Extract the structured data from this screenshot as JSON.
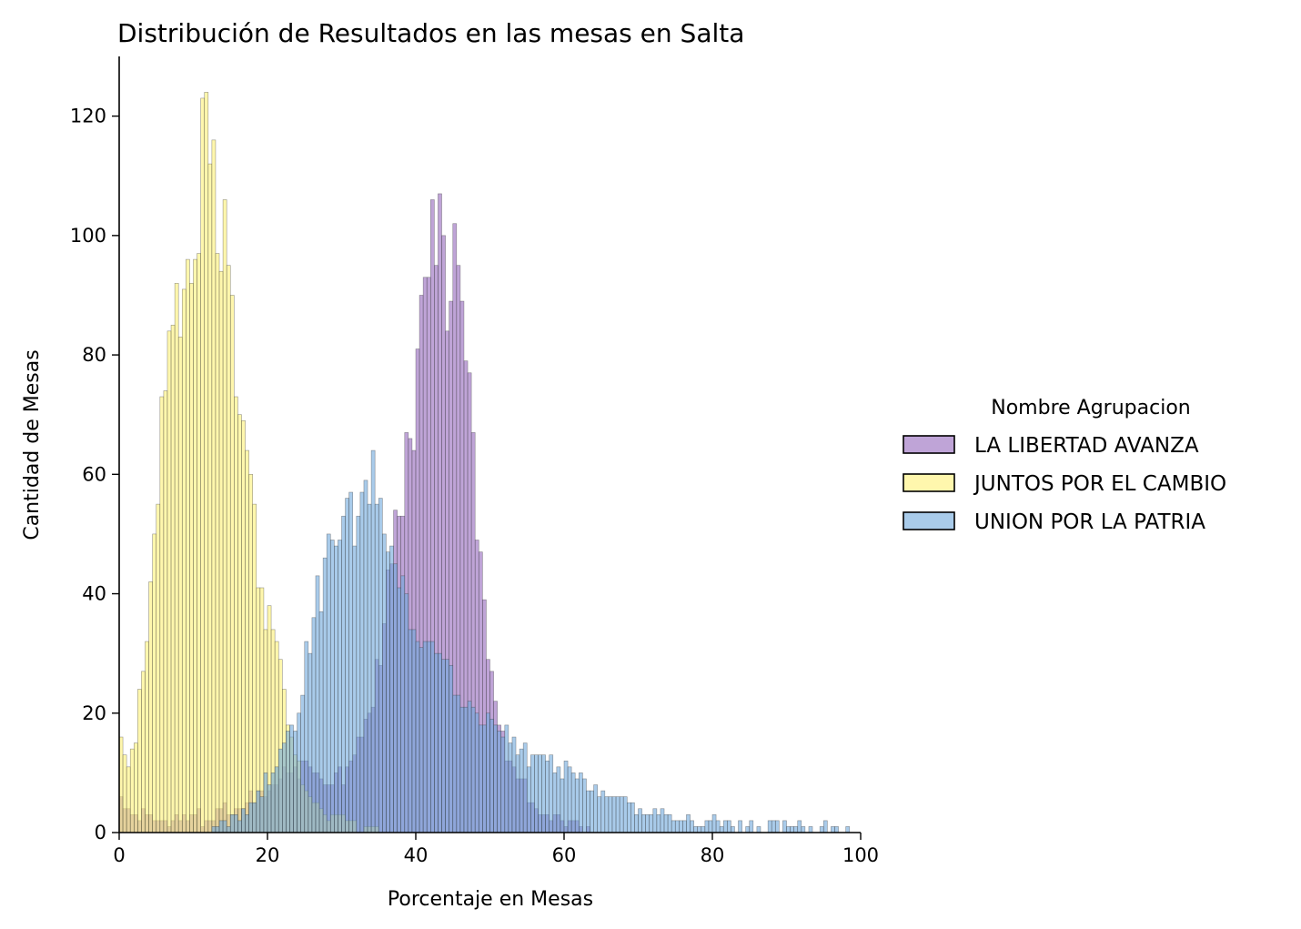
{
  "chart_data": {
    "type": "histogram",
    "title": "Distribución de Resultados en las mesas en Salta",
    "xlabel": "Porcentaje en Mesas",
    "ylabel": "Cantidad de Mesas",
    "xlim": [
      0,
      100
    ],
    "ylim": [
      0,
      130
    ],
    "xticks": [
      0,
      20,
      40,
      60,
      80,
      100
    ],
    "yticks": [
      0,
      20,
      40,
      60,
      80,
      100,
      120
    ],
    "bin_width": 0.5,
    "grid": false,
    "legend": {
      "title": "Nombre Agrupacion",
      "position": "right-center"
    },
    "series": [
      {
        "name": "LA LIBERTAD AVANZA",
        "color": "#9467bd",
        "profile": [
          [
            0,
            8
          ],
          [
            1,
            3
          ],
          [
            2,
            3
          ],
          [
            3,
            3
          ],
          [
            4,
            2
          ],
          [
            6,
            2
          ],
          [
            8,
            2
          ],
          [
            10,
            3
          ],
          [
            12,
            2
          ],
          [
            14,
            4
          ],
          [
            16,
            4
          ],
          [
            18,
            6
          ],
          [
            20,
            7
          ],
          [
            22,
            9
          ],
          [
            24,
            11
          ],
          [
            26,
            12
          ],
          [
            28,
            8
          ],
          [
            30,
            9
          ],
          [
            32,
            14
          ],
          [
            33,
            17
          ],
          [
            34,
            22
          ],
          [
            35,
            28
          ],
          [
            36,
            38
          ],
          [
            37,
            48
          ],
          [
            38,
            56
          ],
          [
            39,
            64
          ],
          [
            40,
            70
          ],
          [
            41,
            86
          ],
          [
            42,
            96
          ],
          [
            42.5,
            104
          ],
          [
            43,
            100
          ],
          [
            44,
            94
          ],
          [
            45,
            98
          ],
          [
            46,
            84
          ],
          [
            47,
            78
          ],
          [
            48,
            58
          ],
          [
            49,
            40
          ],
          [
            50,
            26
          ],
          [
            51,
            20
          ],
          [
            52,
            15
          ],
          [
            54,
            9
          ],
          [
            56,
            5
          ],
          [
            58,
            3
          ],
          [
            60,
            2
          ],
          [
            62,
            1
          ],
          [
            64,
            0
          ],
          [
            100,
            0
          ]
        ]
      },
      {
        "name": "JUNTOS POR EL CAMBIO",
        "color": "#fff176",
        "profile": [
          [
            0,
            19
          ],
          [
            1,
            10
          ],
          [
            2,
            15
          ],
          [
            3,
            25
          ],
          [
            4,
            38
          ],
          [
            5,
            50
          ],
          [
            6,
            72
          ],
          [
            7,
            78
          ],
          [
            8,
            89
          ],
          [
            9,
            98
          ],
          [
            10,
            100
          ],
          [
            11,
            112
          ],
          [
            12,
            124
          ],
          [
            13,
            107
          ],
          [
            14,
            101
          ],
          [
            15,
            86
          ],
          [
            16,
            76
          ],
          [
            17,
            60
          ],
          [
            18,
            55
          ],
          [
            19,
            40
          ],
          [
            20,
            38
          ],
          [
            21,
            30
          ],
          [
            22,
            26
          ],
          [
            23,
            16
          ],
          [
            24,
            12
          ],
          [
            25,
            8
          ],
          [
            26,
            5
          ],
          [
            28,
            3
          ],
          [
            30,
            2
          ],
          [
            32,
            1
          ],
          [
            35,
            0
          ],
          [
            100,
            0
          ]
        ]
      },
      {
        "name": "UNION POR LA PATRIA",
        "color": "#6fa8dc",
        "profile": [
          [
            0,
            0
          ],
          [
            12,
            0
          ],
          [
            15,
            2
          ],
          [
            18,
            5
          ],
          [
            20,
            9
          ],
          [
            22,
            13
          ],
          [
            24,
            20
          ],
          [
            25,
            28
          ],
          [
            26,
            35
          ],
          [
            27,
            39
          ],
          [
            28,
            45
          ],
          [
            29,
            46
          ],
          [
            30,
            50
          ],
          [
            31,
            54
          ],
          [
            32,
            52
          ],
          [
            33,
            58
          ],
          [
            34,
            60
          ],
          [
            35,
            55
          ],
          [
            36,
            48
          ],
          [
            37,
            45
          ],
          [
            38,
            40
          ],
          [
            39,
            38
          ],
          [
            40,
            36
          ],
          [
            41,
            34
          ],
          [
            42,
            30
          ],
          [
            44,
            26
          ],
          [
            46,
            24
          ],
          [
            48,
            20
          ],
          [
            50,
            18
          ],
          [
            52,
            16
          ],
          [
            54,
            14
          ],
          [
            56,
            13
          ],
          [
            58,
            12
          ],
          [
            60,
            10
          ],
          [
            62,
            9
          ],
          [
            64,
            7
          ],
          [
            66,
            6
          ],
          [
            68,
            5
          ],
          [
            70,
            4
          ],
          [
            72,
            4
          ],
          [
            74,
            3
          ],
          [
            76,
            3
          ],
          [
            78,
            2
          ],
          [
            80,
            2
          ],
          [
            84,
            1
          ],
          [
            88,
            1
          ],
          [
            92,
            1
          ],
          [
            96,
            1
          ],
          [
            98,
            1
          ],
          [
            100,
            0
          ]
        ]
      }
    ]
  }
}
